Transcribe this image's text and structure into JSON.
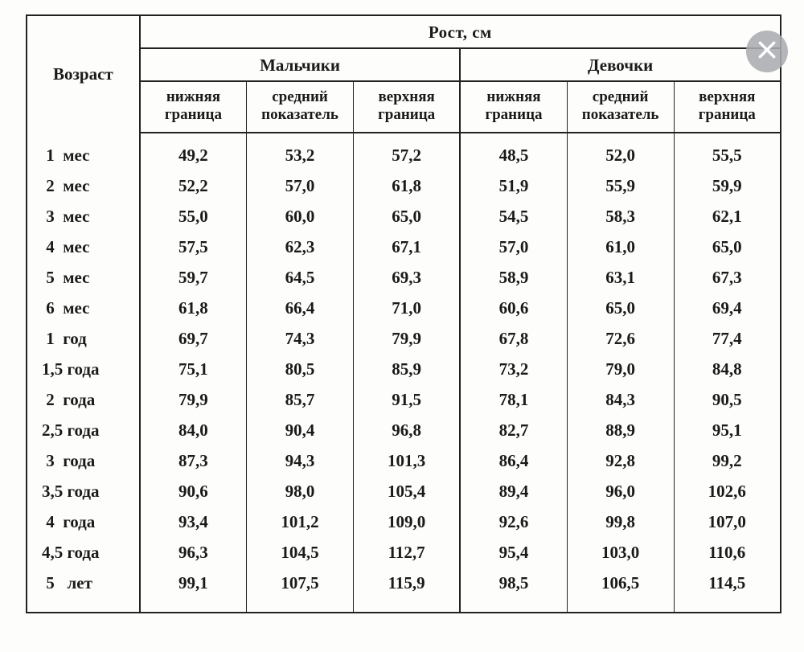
{
  "table": {
    "title_top": "Рост, см",
    "age_header": "Возраст",
    "genders": [
      "Мальчики",
      "Девочки"
    ],
    "subheaders": [
      "нижняя граница",
      "средний показатель",
      "верхняя граница"
    ],
    "col_widths_pct": [
      15,
      14.16,
      14.16,
      14.16,
      14.16,
      14.16,
      14.16
    ],
    "border_color": "#222222",
    "background_color": "#fdfdfb",
    "header_fontsize": 21,
    "sub_fontsize": 19,
    "body_fontsize": 21,
    "rows": [
      {
        "age": " 1  мес",
        "b": [
          "49,2",
          "53,2",
          "57,2"
        ],
        "g": [
          "48,5",
          "52,0",
          "55,5"
        ]
      },
      {
        "age": " 2  мес",
        "b": [
          "52,2",
          "57,0",
          "61,8"
        ],
        "g": [
          "51,9",
          "55,9",
          "59,9"
        ]
      },
      {
        "age": " 3  мес",
        "b": [
          "55,0",
          "60,0",
          "65,0"
        ],
        "g": [
          "54,5",
          "58,3",
          "62,1"
        ]
      },
      {
        "age": " 4  мес",
        "b": [
          "57,5",
          "62,3",
          "67,1"
        ],
        "g": [
          "57,0",
          "61,0",
          "65,0"
        ]
      },
      {
        "age": " 5  мес",
        "b": [
          "59,7",
          "64,5",
          "69,3"
        ],
        "g": [
          "58,9",
          "63,1",
          "67,3"
        ]
      },
      {
        "age": " 6  мес",
        "b": [
          "61,8",
          "66,4",
          "71,0"
        ],
        "g": [
          "60,6",
          "65,0",
          "69,4"
        ]
      },
      {
        "age": " 1  год",
        "b": [
          "69,7",
          "74,3",
          "79,9"
        ],
        "g": [
          "67,8",
          "72,6",
          "77,4"
        ]
      },
      {
        "age": "1,5 года",
        "b": [
          "75,1",
          "80,5",
          "85,9"
        ],
        "g": [
          "73,2",
          "79,0",
          "84,8"
        ]
      },
      {
        "age": " 2  года",
        "b": [
          "79,9",
          "85,7",
          "91,5"
        ],
        "g": [
          "78,1",
          "84,3",
          "90,5"
        ]
      },
      {
        "age": "2,5 года",
        "b": [
          "84,0",
          "90,4",
          "96,8"
        ],
        "g": [
          "82,7",
          "88,9",
          "95,1"
        ]
      },
      {
        "age": " 3  года",
        "b": [
          "87,3",
          "94,3",
          "101,3"
        ],
        "g": [
          "86,4",
          "92,8",
          "99,2"
        ]
      },
      {
        "age": "3,5 года",
        "b": [
          "90,6",
          "98,0",
          "105,4"
        ],
        "g": [
          "89,4",
          "96,0",
          "102,6"
        ]
      },
      {
        "age": " 4  года",
        "b": [
          "93,4",
          "101,2",
          "109,0"
        ],
        "g": [
          "92,6",
          "99,8",
          "107,0"
        ]
      },
      {
        "age": "4,5 года",
        "b": [
          "96,3",
          "104,5",
          "112,7"
        ],
        "g": [
          "95,4",
          "103,0",
          "110,6"
        ]
      },
      {
        "age": " 5   лет",
        "b": [
          "99,1",
          "107,5",
          "115,9"
        ],
        "g": [
          "98,5",
          "106,5",
          "114,5"
        ]
      }
    ]
  },
  "close_button": {
    "bg_color": "rgba(170,172,176,0.88)",
    "x_color": "#ffffff"
  }
}
